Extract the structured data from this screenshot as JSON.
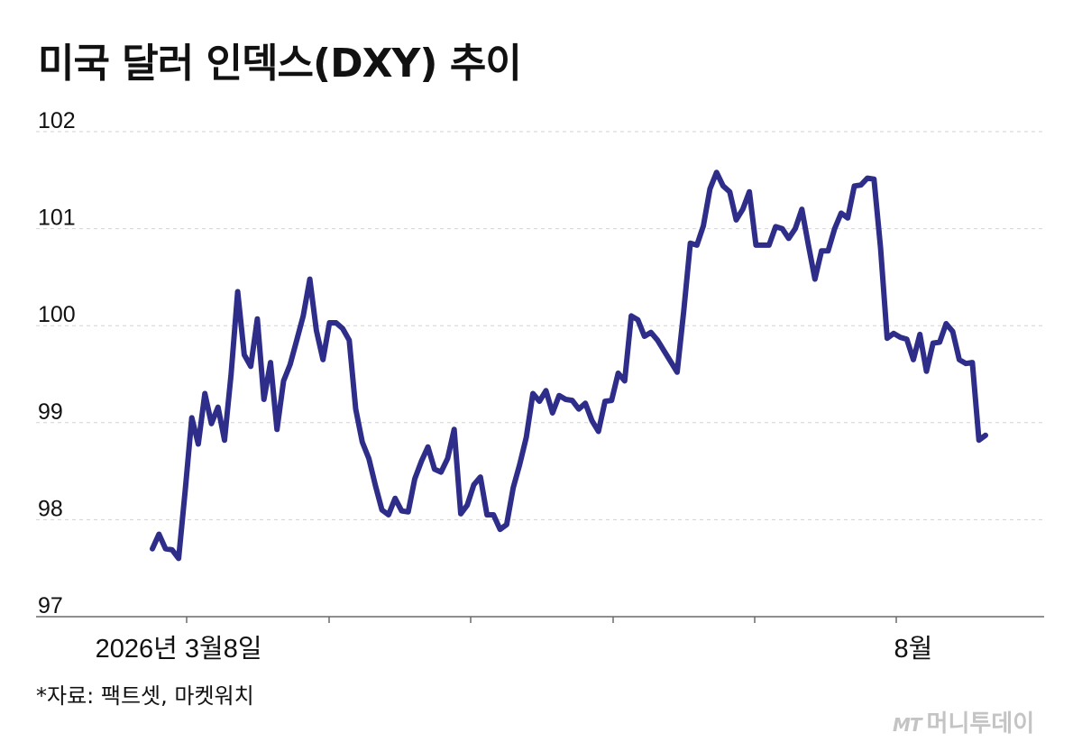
{
  "chart_data": {
    "type": "line",
    "title": "미국 달러 인덱스(DXY) 추이",
    "xlabel": "",
    "ylabel": "",
    "ylim": [
      97,
      102
    ],
    "yticks": [
      97,
      98,
      99,
      100,
      101,
      102
    ],
    "grid": true,
    "xtick_labels": [
      {
        "label": "2026년 3월8일",
        "index": 4
      },
      {
        "label": "8월",
        "index": 116
      }
    ],
    "line_color": "#2e2e8a",
    "series": [
      {
        "values": [
          97.7,
          97.85,
          97.7,
          97.69,
          97.6,
          98.3,
          99.05,
          98.78,
          99.3,
          98.99,
          99.16,
          98.82,
          99.5,
          100.35,
          99.7,
          99.58,
          100.07,
          99.24,
          99.62,
          98.93,
          99.43,
          99.6,
          99.85,
          100.1,
          100.48,
          99.95,
          99.65,
          100.03,
          100.03,
          99.97,
          99.85,
          99.14,
          98.8,
          98.63,
          98.35,
          98.1,
          98.05,
          98.22,
          98.09,
          98.08,
          98.42,
          98.6,
          98.75,
          98.52,
          98.49,
          98.63,
          98.93,
          98.06,
          98.15,
          98.36,
          98.44,
          98.05,
          98.05,
          97.9,
          97.95,
          98.33,
          98.57,
          98.85,
          99.3,
          99.22,
          99.33,
          99.1,
          99.28,
          99.24,
          99.23,
          99.14,
          99.2,
          99.02,
          98.91,
          99.22,
          99.23,
          99.51,
          99.43,
          100.1,
          100.06,
          99.89,
          99.93,
          99.85,
          99.74,
          99.63,
          99.52,
          100.15,
          100.85,
          100.83,
          101.03,
          101.41,
          101.58,
          101.44,
          101.38,
          101.09,
          101.2,
          101.38,
          100.83,
          100.83,
          100.83,
          101.02,
          101.0,
          100.9,
          101.0,
          101.2,
          100.83,
          100.48,
          100.77,
          100.77,
          101.0,
          101.16,
          101.11,
          101.44,
          101.45,
          101.52,
          101.51,
          100.8,
          99.87,
          99.92,
          99.88,
          99.86,
          99.65,
          99.91,
          99.53,
          99.82,
          99.83,
          100.02,
          99.94,
          99.65,
          99.61,
          99.62,
          98.82,
          98.87
        ]
      }
    ]
  },
  "source_note": "*자료: 팩트셋, 마켓워치",
  "watermark": {
    "logo": "MT",
    "name": "머니투데이"
  }
}
